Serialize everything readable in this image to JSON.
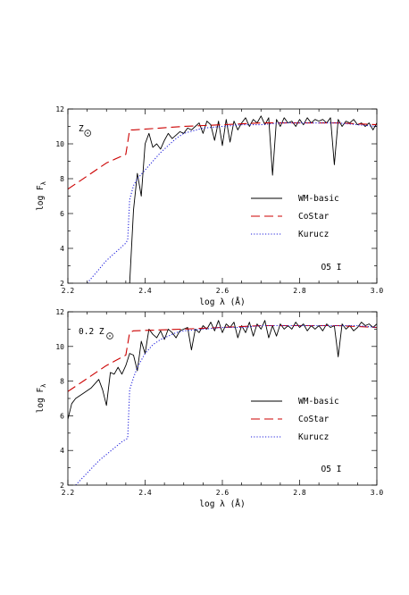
{
  "chart_data": [
    {
      "type": "line",
      "annotation": "Z",
      "annotation_symbol": "solar",
      "label": "O5 I",
      "xlabel": "log  λ (Å)",
      "ylabel": "log F",
      "ylabel_sub": "λ",
      "xlim": [
        2.2,
        3.0
      ],
      "ylim": [
        2,
        12
      ],
      "xticks": [
        "2.2",
        "2.4",
        "2.6",
        "2.8",
        "3.0"
      ],
      "yticks": [
        "2",
        "4",
        "6",
        "8",
        "10",
        "12"
      ],
      "legend_position": "right",
      "series": [
        {
          "name": "WM-basic",
          "color": "#000000",
          "dash": "solid",
          "x": [
            2.36,
            2.37,
            2.38,
            2.39,
            2.4,
            2.41,
            2.42,
            2.43,
            2.44,
            2.45,
            2.46,
            2.47,
            2.48,
            2.49,
            2.5,
            2.51,
            2.52,
            2.53,
            2.54,
            2.55,
            2.56,
            2.57,
            2.58,
            2.59,
            2.6,
            2.61,
            2.62,
            2.63,
            2.64,
            2.65,
            2.66,
            2.67,
            2.68,
            2.69,
            2.7,
            2.71,
            2.72,
            2.73,
            2.74,
            2.75,
            2.76,
            2.77,
            2.78,
            2.79,
            2.8,
            2.81,
            2.82,
            2.83,
            2.84,
            2.85,
            2.86,
            2.87,
            2.88,
            2.89,
            2.9,
            2.91,
            2.92,
            2.93,
            2.94,
            2.95,
            2.96,
            2.97,
            2.98,
            2.99,
            3.0
          ],
          "y": [
            2,
            6.2,
            8.3,
            7.0,
            10.0,
            10.6,
            9.8,
            10.0,
            9.7,
            10.2,
            10.6,
            10.3,
            10.5,
            10.7,
            10.6,
            10.9,
            10.8,
            11.0,
            11.2,
            10.6,
            11.3,
            11.1,
            10.2,
            11.3,
            9.9,
            11.4,
            10.1,
            11.3,
            10.8,
            11.2,
            11.5,
            11.0,
            11.4,
            11.2,
            11.6,
            11.1,
            11.5,
            8.2,
            11.4,
            11.0,
            11.5,
            11.2,
            11.3,
            11.0,
            11.4,
            11.1,
            11.5,
            11.2,
            11.4,
            11.3,
            11.4,
            11.2,
            11.5,
            8.8,
            11.4,
            11.0,
            11.3,
            11.2,
            11.4,
            11.1,
            11.2,
            11.0,
            11.2,
            10.8,
            11.2
          ]
        },
        {
          "name": "CoStar",
          "color": "#cc0000",
          "dash": "long",
          "x": [
            2.2,
            2.3,
            2.35,
            2.36,
            2.37,
            2.5,
            2.6,
            2.7,
            2.8,
            2.9,
            3.0
          ],
          "y": [
            7.4,
            8.9,
            9.4,
            10.8,
            10.8,
            11.0,
            11.1,
            11.2,
            11.2,
            11.2,
            11.1
          ]
        },
        {
          "name": "Kurucz",
          "color": "#2222dd",
          "dash": "dotted",
          "x": [
            2.25,
            2.3,
            2.35,
            2.355,
            2.36,
            2.37,
            2.38,
            2.4,
            2.42,
            2.44,
            2.46,
            2.48,
            2.5,
            2.55,
            2.6,
            2.65,
            2.7,
            2.75,
            2.8,
            2.85,
            2.9,
            2.95,
            3.0
          ],
          "y": [
            2.0,
            3.3,
            4.3,
            4.5,
            6.8,
            7.6,
            8.0,
            8.5,
            9.0,
            9.5,
            9.9,
            10.3,
            10.6,
            10.9,
            11.0,
            11.1,
            11.1,
            11.2,
            11.2,
            11.2,
            11.2,
            11.1,
            11.0
          ]
        }
      ]
    },
    {
      "type": "line",
      "annotation": "0.2 Z",
      "annotation_symbol": "solar",
      "label": "O5 I",
      "xlabel": "log  λ (Å)",
      "ylabel": "log F",
      "ylabel_sub": "λ",
      "xlim": [
        2.2,
        3.0
      ],
      "ylim": [
        2,
        12
      ],
      "xticks": [
        "2.2",
        "2.4",
        "2.6",
        "2.8",
        "3.0"
      ],
      "yticks": [
        "2",
        "4",
        "6",
        "8",
        "10",
        "12"
      ],
      "legend_position": "right",
      "series": [
        {
          "name": "WM-basic",
          "color": "#000000",
          "dash": "solid",
          "x": [
            2.2,
            2.21,
            2.22,
            2.24,
            2.26,
            2.28,
            2.29,
            2.3,
            2.31,
            2.32,
            2.33,
            2.34,
            2.35,
            2.36,
            2.37,
            2.38,
            2.39,
            2.4,
            2.41,
            2.42,
            2.43,
            2.44,
            2.45,
            2.46,
            2.47,
            2.48,
            2.49,
            2.5,
            2.51,
            2.52,
            2.53,
            2.54,
            2.55,
            2.56,
            2.57,
            2.58,
            2.59,
            2.6,
            2.61,
            2.62,
            2.63,
            2.64,
            2.65,
            2.66,
            2.67,
            2.68,
            2.69,
            2.7,
            2.71,
            2.72,
            2.73,
            2.74,
            2.75,
            2.76,
            2.77,
            2.78,
            2.79,
            2.8,
            2.81,
            2.82,
            2.83,
            2.84,
            2.85,
            2.86,
            2.87,
            2.88,
            2.89,
            2.9,
            2.91,
            2.92,
            2.93,
            2.94,
            2.95,
            2.96,
            2.97,
            2.98,
            2.99,
            3.0
          ],
          "y": [
            5.8,
            6.7,
            7.0,
            7.3,
            7.6,
            8.1,
            7.5,
            6.6,
            8.5,
            8.4,
            8.8,
            8.4,
            8.9,
            9.6,
            9.5,
            8.6,
            10.3,
            9.6,
            11.0,
            10.7,
            10.5,
            10.9,
            10.4,
            11.0,
            10.8,
            10.5,
            10.9,
            11.0,
            11.1,
            9.8,
            11.0,
            10.8,
            11.2,
            11.0,
            11.4,
            10.9,
            11.5,
            10.8,
            11.3,
            11.1,
            11.4,
            10.5,
            11.2,
            10.8,
            11.4,
            10.6,
            11.3,
            11.0,
            11.5,
            10.5,
            11.2,
            10.6,
            11.3,
            11.0,
            11.2,
            11.0,
            11.4,
            11.1,
            11.3,
            10.9,
            11.2,
            11.0,
            11.2,
            10.9,
            11.3,
            11.1,
            11.2,
            9.4,
            11.3,
            11.0,
            11.2,
            10.9,
            11.1,
            11.4,
            11.2,
            11.3,
            11.1,
            11.3
          ]
        },
        {
          "name": "CoStar",
          "color": "#cc0000",
          "dash": "long",
          "x": [
            2.2,
            2.3,
            2.35,
            2.36,
            2.37,
            2.5,
            2.6,
            2.7,
            2.8,
            2.9,
            3.0
          ],
          "y": [
            7.4,
            8.9,
            9.5,
            10.8,
            10.9,
            11.0,
            11.1,
            11.2,
            11.2,
            11.2,
            11.1
          ]
        },
        {
          "name": "Kurucz",
          "color": "#2222dd",
          "dash": "dotted",
          "x": [
            2.22,
            2.28,
            2.34,
            2.355,
            2.36,
            2.37,
            2.38,
            2.4,
            2.42,
            2.44,
            2.46,
            2.48,
            2.5,
            2.55,
            2.6,
            2.65,
            2.7,
            2.75,
            2.8,
            2.85,
            2.9,
            2.95,
            3.0
          ],
          "y": [
            2.0,
            3.4,
            4.5,
            4.7,
            7.5,
            8.2,
            8.8,
            9.6,
            10.1,
            10.4,
            10.6,
            10.8,
            10.9,
            11.0,
            11.1,
            11.1,
            11.2,
            11.2,
            11.2,
            11.2,
            11.2,
            11.2,
            11.1
          ]
        }
      ]
    }
  ]
}
